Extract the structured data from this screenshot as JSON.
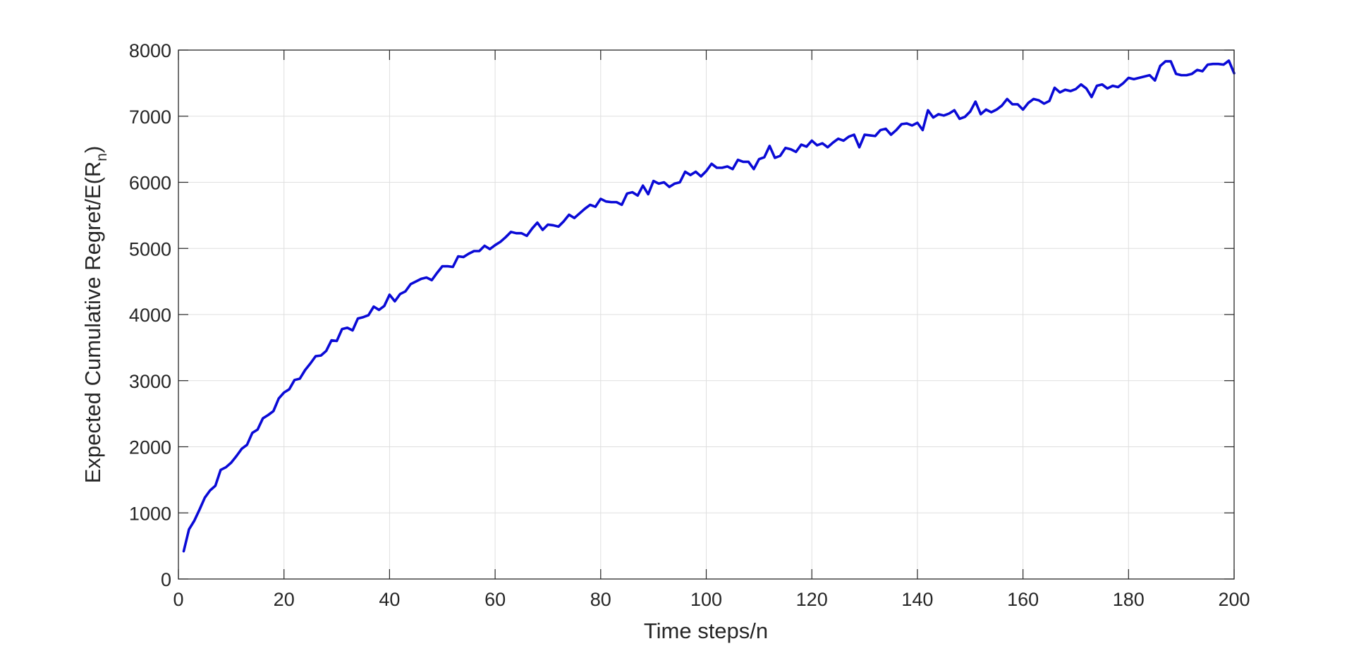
{
  "chart_data": {
    "type": "line",
    "title": "",
    "xlabel": "Time steps/n",
    "ylabel": "Expected Cumulative Regret/E(R",
    "ylabel_sub": "n",
    "ylabel_close": ")",
    "xlim": [
      0,
      200
    ],
    "ylim": [
      0,
      8000
    ],
    "xticks": [
      0,
      20,
      40,
      60,
      80,
      100,
      120,
      140,
      160,
      180,
      200
    ],
    "yticks": [
      0,
      1000,
      2000,
      3000,
      4000,
      5000,
      6000,
      7000,
      8000
    ],
    "grid": true,
    "series": [
      {
        "color": "#0a0ad6",
        "x": [
          1,
          2,
          3,
          4,
          5,
          6,
          7,
          8,
          9,
          10,
          11,
          12,
          13,
          14,
          15,
          16,
          17,
          18,
          19,
          20,
          21,
          22,
          23,
          24,
          25,
          26,
          27,
          28,
          29,
          30,
          31,
          32,
          33,
          34,
          35,
          36,
          37,
          38,
          39,
          40,
          41,
          42,
          43,
          44,
          45,
          46,
          47,
          48,
          49,
          50,
          51,
          52,
          53,
          54,
          55,
          56,
          57,
          58,
          59,
          60,
          61,
          62,
          63,
          64,
          65,
          66,
          67,
          68,
          69,
          70,
          71,
          72,
          73,
          74,
          75,
          76,
          77,
          78,
          79,
          80,
          81,
          82,
          83,
          84,
          85,
          86,
          87,
          88,
          89,
          90,
          91,
          92,
          93,
          94,
          95,
          96,
          97,
          98,
          99,
          100,
          101,
          102,
          103,
          104,
          105,
          106,
          107,
          108,
          109,
          110,
          111,
          112,
          113,
          114,
          115,
          116,
          117,
          118,
          119,
          120,
          121,
          122,
          123,
          124,
          125,
          126,
          127,
          128,
          129,
          130,
          131,
          132,
          133,
          134,
          135,
          136,
          137,
          138,
          139,
          140,
          141,
          142,
          143,
          144,
          145,
          146,
          147,
          148,
          149,
          150,
          151,
          152,
          153,
          154,
          155,
          156,
          157,
          158,
          159,
          160,
          161,
          162,
          163,
          164,
          165,
          166,
          167,
          168,
          169,
          170,
          171,
          172,
          173,
          174,
          175,
          176,
          177,
          178,
          179,
          180,
          181,
          182,
          183,
          184,
          185,
          186,
          187,
          188,
          189,
          190,
          191,
          192,
          193,
          194,
          195,
          196,
          197,
          198,
          199,
          200
        ],
        "y": [
          420,
          750,
          880,
          1050,
          1230,
          1340,
          1410,
          1650,
          1690,
          1760,
          1860,
          1970,
          2030,
          2210,
          2260,
          2430,
          2480,
          2540,
          2730,
          2820,
          2870,
          3010,
          3030,
          3160,
          3260,
          3370,
          3380,
          3450,
          3610,
          3600,
          3780,
          3800,
          3760,
          3940,
          3960,
          3990,
          4120,
          4070,
          4130,
          4300,
          4200,
          4310,
          4350,
          4460,
          4500,
          4540,
          4560,
          4520,
          4630,
          4730,
          4730,
          4720,
          4880,
          4870,
          4920,
          4960,
          4960,
          5040,
          4990,
          5050,
          5100,
          5170,
          5250,
          5230,
          5230,
          5190,
          5300,
          5390,
          5280,
          5360,
          5350,
          5330,
          5410,
          5510,
          5460,
          5530,
          5600,
          5660,
          5630,
          5750,
          5710,
          5700,
          5700,
          5660,
          5830,
          5850,
          5800,
          5950,
          5820,
          6020,
          5980,
          6000,
          5930,
          5980,
          6000,
          6160,
          6110,
          6160,
          6090,
          6170,
          6280,
          6220,
          6220,
          6240,
          6200,
          6340,
          6310,
          6310,
          6200,
          6350,
          6380,
          6550,
          6370,
          6400,
          6520,
          6500,
          6460,
          6570,
          6540,
          6630,
          6560,
          6590,
          6530,
          6600,
          6660,
          6630,
          6690,
          6720,
          6530,
          6720,
          6710,
          6700,
          6790,
          6810,
          6720,
          6790,
          6880,
          6890,
          6860,
          6900,
          6790,
          7090,
          6980,
          7030,
          7010,
          7040,
          7090,
          6960,
          6990,
          7070,
          7220,
          7030,
          7100,
          7060,
          7100,
          7160,
          7260,
          7180,
          7180,
          7100,
          7200,
          7260,
          7240,
          7190,
          7230,
          7430,
          7360,
          7400,
          7380,
          7410,
          7480,
          7420,
          7290,
          7460,
          7480,
          7420,
          7460,
          7440,
          7500,
          7580,
          7560,
          7580,
          7600,
          7620,
          7540,
          7760,
          7830,
          7830,
          7640,
          7620,
          7620,
          7640,
          7700,
          7680,
          7780,
          7790,
          7790,
          7780,
          7840,
          7650
        ]
      }
    ]
  }
}
